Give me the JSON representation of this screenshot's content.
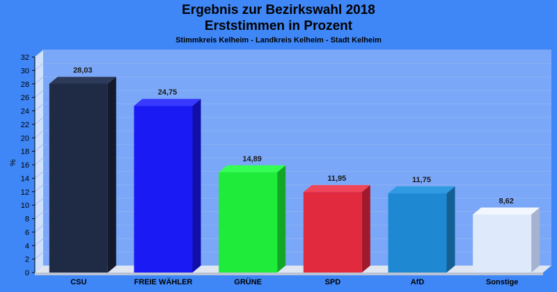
{
  "header": {
    "title_line1": "Ergebnis zur Bezirkswahl 2018",
    "title_line2": "Erststimmen in Prozent",
    "subtitle": "Stimmkreis Kelheim - Landkreis Kelheim - Stadt Kelheim"
  },
  "chart_data": {
    "type": "bar",
    "title": "Ergebnis zur Bezirkswahl 2018 Erststimmen in Prozent",
    "subtitle": "Stimmkreis Kelheim - Landkreis Kelheim - Stadt Kelheim",
    "xlabel": "",
    "ylabel": "%",
    "ylim": [
      0,
      32
    ],
    "yticks": [
      "0",
      "2",
      "4",
      "6",
      "8",
      "10",
      "12",
      "14",
      "16",
      "18",
      "20",
      "22",
      "24",
      "26",
      "28",
      "30",
      "32"
    ],
    "grid": true,
    "categories": [
      "CSU",
      "FREIE WÄHLER",
      "GRÜNE",
      "SPD",
      "AfD",
      "Sonstige"
    ],
    "values": [
      28.03,
      24.75,
      14.89,
      11.95,
      11.75,
      8.62
    ],
    "value_labels": [
      "28,03",
      "24,75",
      "14,89",
      "11,95",
      "11,75",
      "8,62"
    ],
    "colors": [
      "#1f2a44",
      "#1a1af5",
      "#1feb3a",
      "#e22a3e",
      "#1f88d2",
      "#dfe9fc"
    ],
    "side_colors": [
      "#121a2c",
      "#1010a8",
      "#12a826",
      "#a11a2b",
      "#145f94",
      "#a6b3cf"
    ],
    "top_colors": [
      "#2c3958",
      "#3838ff",
      "#35ff52",
      "#f04458",
      "#2f9ae2",
      "#f2f6ff"
    ]
  }
}
